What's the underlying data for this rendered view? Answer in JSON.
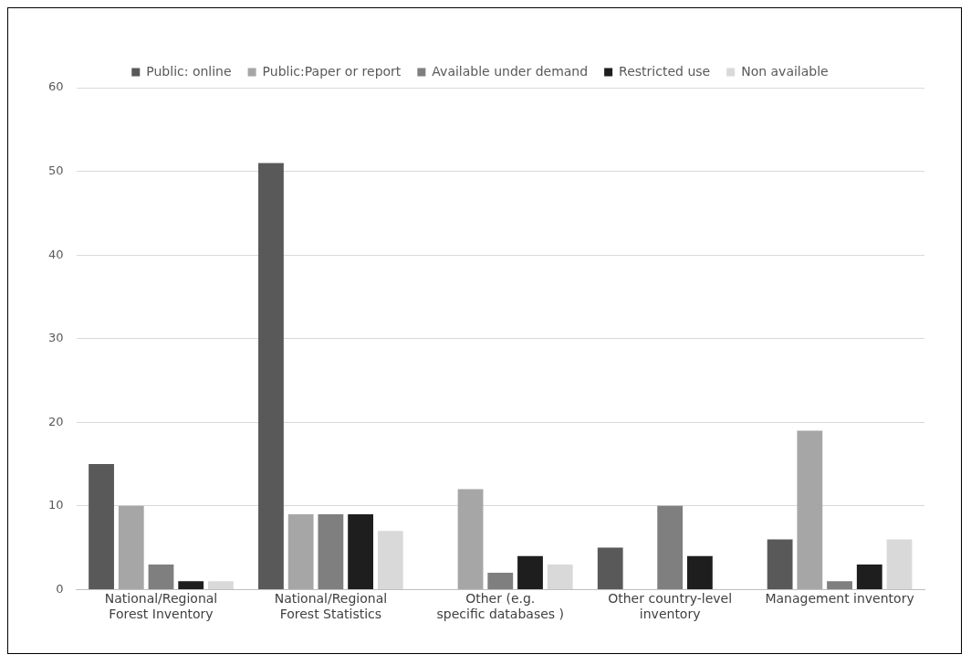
{
  "chart_data": {
    "type": "bar",
    "categories": [
      "National/Regional Forest Inventory",
      "National/Regional Forest Statistics",
      "Other (e.g. specific databases )",
      "Other country-level inventory",
      "Management inventory"
    ],
    "series": [
      {
        "name": "Public: online",
        "color": "#595959",
        "values": [
          15,
          51,
          0,
          5,
          6
        ]
      },
      {
        "name": "Public:Paper or report",
        "color": "#a6a6a6",
        "values": [
          10,
          9,
          12,
          0,
          19
        ]
      },
      {
        "name": "Available under demand",
        "color": "#7f7f7f",
        "values": [
          3,
          9,
          2,
          10,
          1
        ]
      },
      {
        "name": "Restricted use",
        "color": "#1e1e1e",
        "values": [
          1,
          9,
          4,
          4,
          3
        ]
      },
      {
        "name": "Non available",
        "color": "#d9d9d9",
        "values": [
          1,
          7,
          3,
          0,
          6
        ]
      }
    ],
    "ylim": [
      0,
      60
    ],
    "yticks": [
      0,
      10,
      20,
      30,
      40,
      50,
      60
    ],
    "grid": "y",
    "legend": "top"
  }
}
